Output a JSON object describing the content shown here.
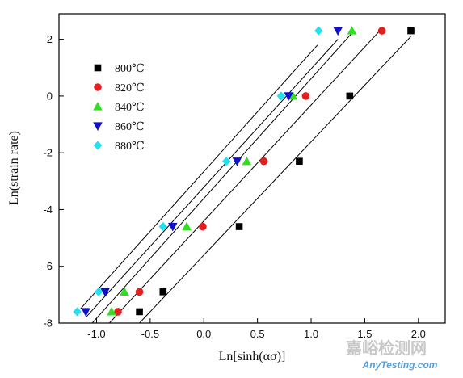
{
  "chart_data": {
    "type": "scatter",
    "xlabel": "Ln[sinh(ασ)]",
    "ylabel": "Ln(strain rate)",
    "xlim": [
      -1.35,
      2.25
    ],
    "ylim": [
      -8,
      2.9
    ],
    "xticks": [
      -1.0,
      -0.5,
      0.0,
      0.5,
      1.0,
      1.5,
      2.0
    ],
    "xtick_labels": [
      "-1.0",
      "-0.5",
      "0.0",
      "0.5",
      "1.0",
      "1.5",
      "2.0"
    ],
    "yticks": [
      -8,
      -6,
      -4,
      -2,
      0,
      2
    ],
    "ytick_labels": [
      "-8",
      "-6",
      "-4",
      "-2",
      "0",
      "2"
    ],
    "grid": false,
    "legend_position": "upper-left",
    "series": [
      {
        "name": "800℃",
        "marker": "square",
        "color": "#000000",
        "x": [
          -0.6,
          -0.38,
          0.33,
          0.89,
          1.36,
          1.93
        ],
        "y": [
          -7.6,
          -6.9,
          -4.6,
          -2.3,
          0.0,
          2.3
        ],
        "fit": {
          "x": [
            -0.6,
            1.93
          ],
          "y": [
            -8.0,
            2.1
          ]
        }
      },
      {
        "name": "820℃",
        "marker": "circle",
        "color": "#e32020",
        "x": [
          -0.8,
          -0.6,
          -0.01,
          0.56,
          0.95,
          1.66
        ],
        "y": [
          -7.6,
          -6.9,
          -4.6,
          -2.3,
          0.0,
          2.3
        ],
        "fit": {
          "x": [
            -0.88,
            1.64
          ],
          "y": [
            -8.0,
            2.3
          ]
        }
      },
      {
        "name": "840℃",
        "marker": "triangle-up",
        "color": "#33dd22",
        "x": [
          -0.86,
          -0.74,
          -0.16,
          0.4,
          0.83,
          1.38
        ],
        "y": [
          -7.6,
          -6.9,
          -4.6,
          -2.3,
          0.0,
          2.3
        ],
        "fit": {
          "x": [
            -1.04,
            1.4
          ],
          "y": [
            -8.0,
            2.3
          ]
        }
      },
      {
        "name": "860℃",
        "marker": "triangle-down",
        "color": "#1010cc",
        "x": [
          -1.1,
          -0.92,
          -0.29,
          0.31,
          0.79,
          1.25
        ],
        "y": [
          -7.6,
          -6.9,
          -4.6,
          -2.3,
          0.0,
          2.3
        ],
        "fit": {
          "x": [
            -1.1,
            1.25
          ],
          "y": [
            -7.8,
            2.0
          ]
        }
      },
      {
        "name": "880℃",
        "marker": "diamond",
        "color": "#22e0f0",
        "x": [
          -1.18,
          -0.98,
          -0.38,
          0.21,
          0.72,
          1.07
        ],
        "y": [
          -7.6,
          -6.9,
          -4.6,
          -2.3,
          0.0,
          2.3
        ],
        "fit": {
          "x": [
            -1.15,
            1.06
          ],
          "y": [
            -7.5,
            1.8
          ]
        }
      }
    ]
  },
  "watermark": {
    "cn": "嘉峪检测网",
    "en": "AnyTesting.com"
  }
}
